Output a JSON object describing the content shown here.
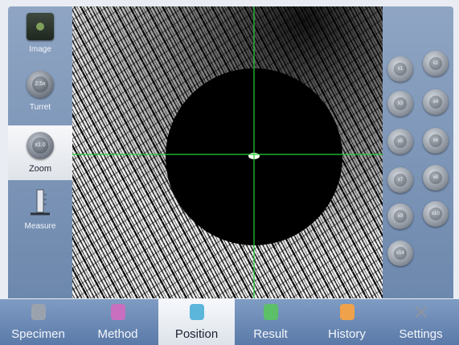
{
  "left_tools": [
    {
      "label": "Image",
      "icon": "camera-icon"
    },
    {
      "label": "Turret",
      "icon": "turret-knob-icon",
      "value": "2.5x"
    },
    {
      "label": "Zoom",
      "icon": "zoom-knob-icon",
      "value": "x1.0",
      "active": true
    },
    {
      "label": "Measure",
      "icon": "measure-icon"
    }
  ],
  "zoom_buttons": [
    "x1",
    "x2",
    "x3",
    "x4",
    "x5",
    "x6",
    "x7",
    "x8",
    "x9",
    "x10",
    "x14"
  ],
  "tabs": [
    {
      "label": "Specimen",
      "icon": "specimen-icon",
      "color": "#9aa3ad"
    },
    {
      "label": "Method",
      "icon": "method-icon",
      "color": "#c86fc0"
    },
    {
      "label": "Position",
      "icon": "position-icon",
      "color": "#5cb6dc",
      "active": true
    },
    {
      "label": "Result",
      "icon": "result-icon",
      "color": "#5cc068"
    },
    {
      "label": "History",
      "icon": "history-icon",
      "color": "#f0a24a"
    },
    {
      "label": "Settings",
      "icon": "settings-icon",
      "color": "#8c95a3"
    }
  ],
  "colors": {
    "crosshair": "#27d13b",
    "panel": "#7a93b8",
    "accent": "#5cb6dc"
  }
}
